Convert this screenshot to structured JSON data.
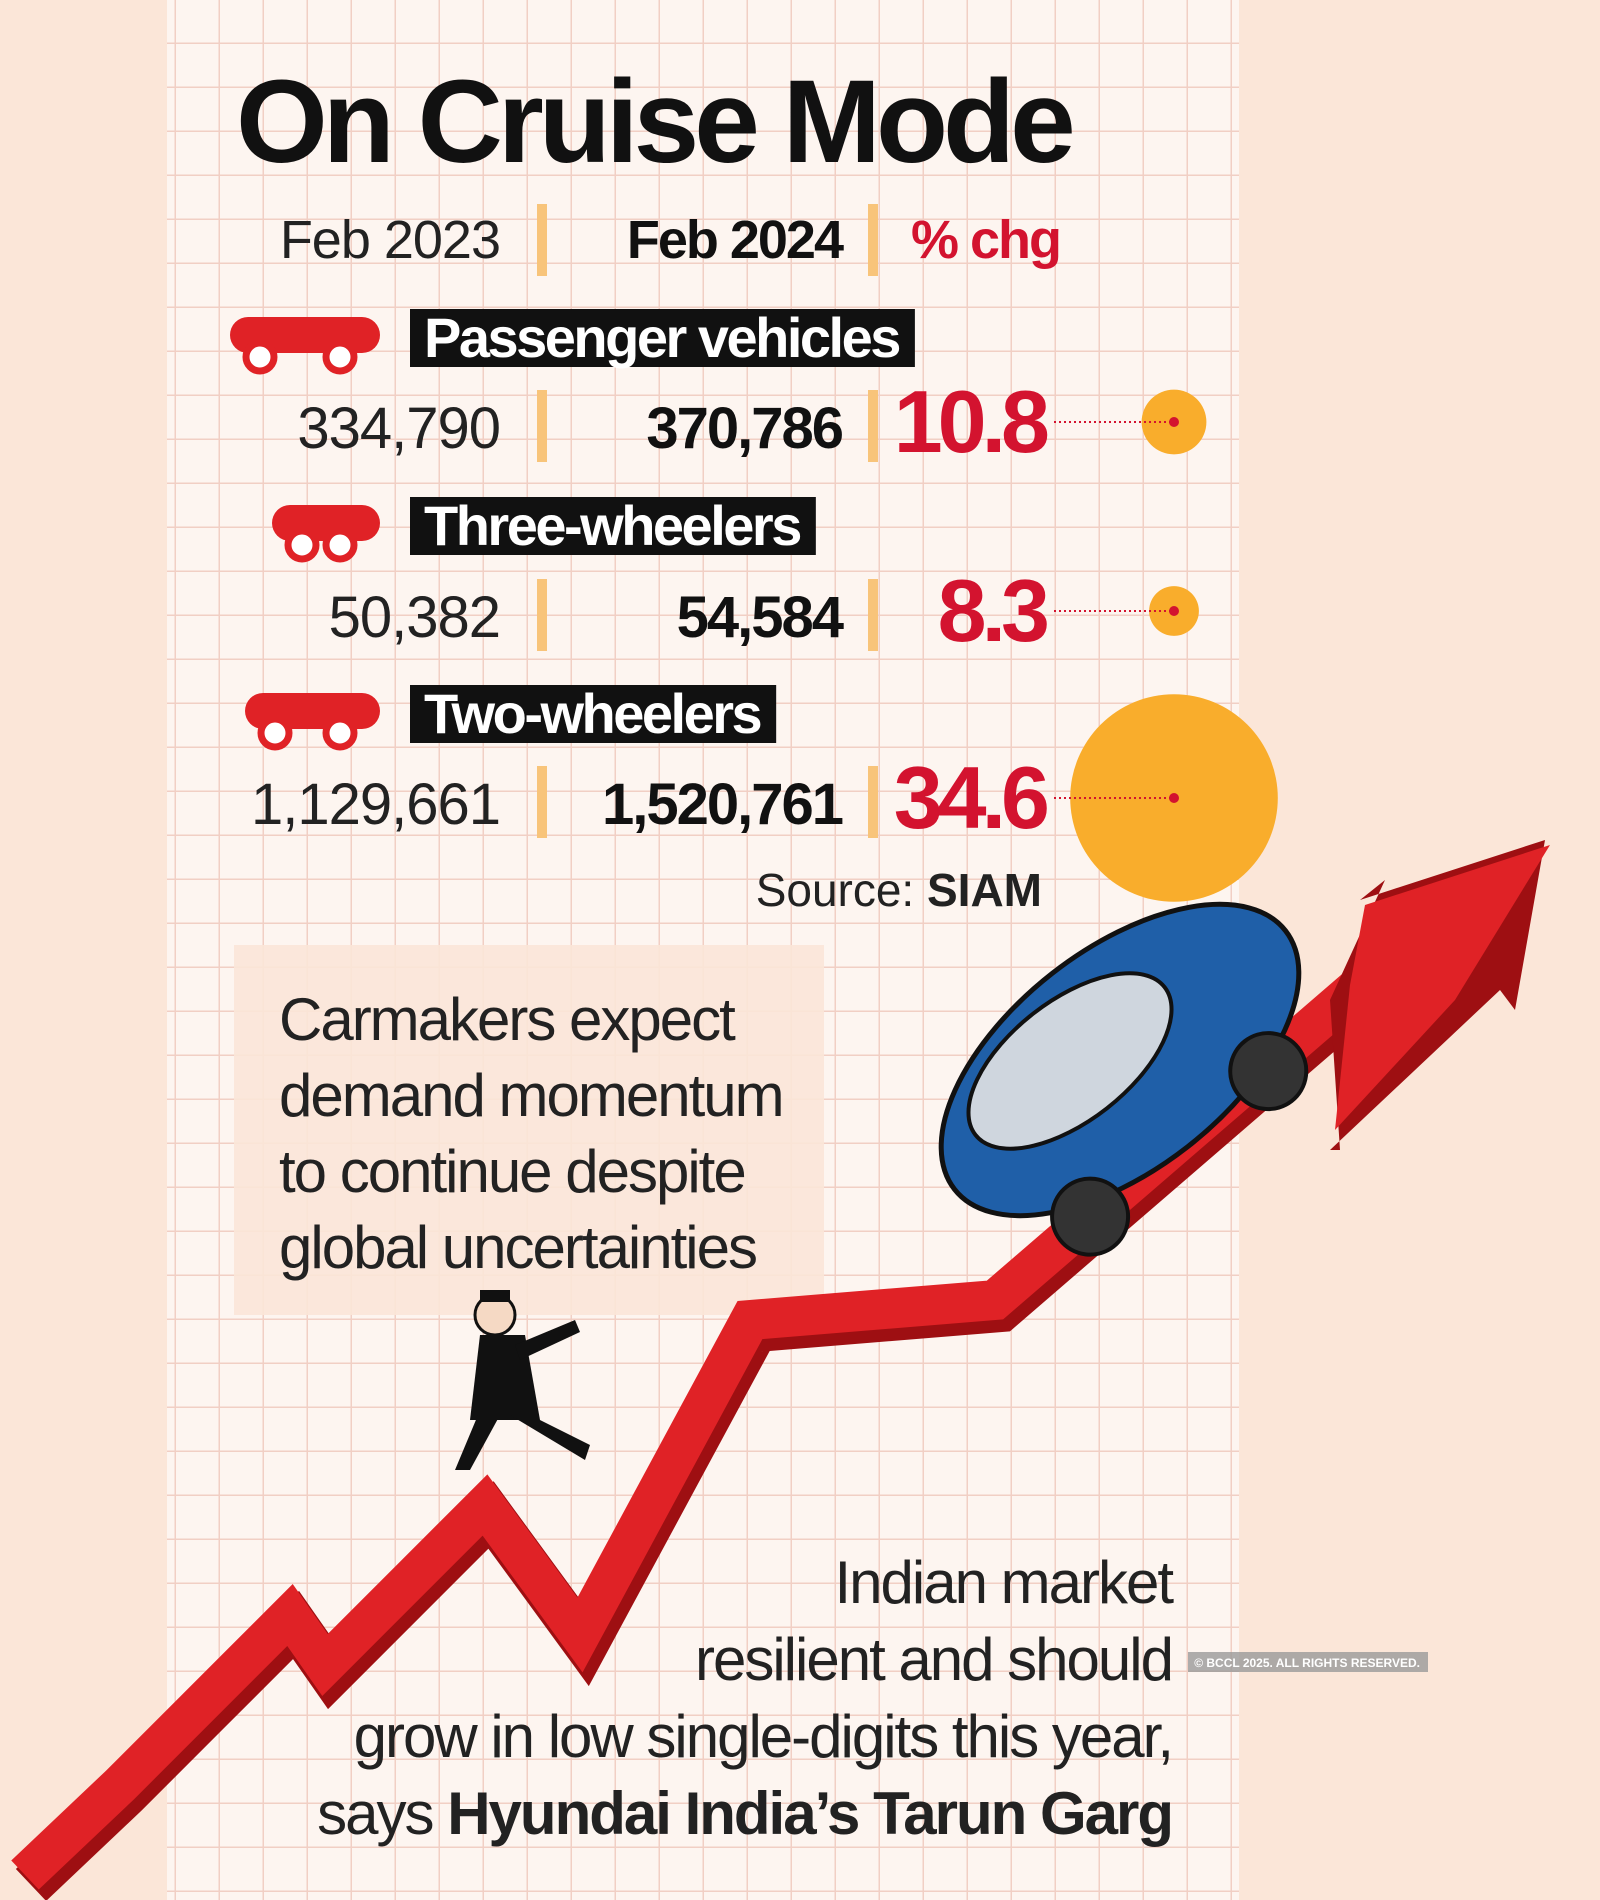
{
  "title": "On Cruise Mode",
  "columns": [
    "Feb 2023",
    "Feb 2024",
    "% chg"
  ],
  "rows": [
    {
      "label": "Passenger vehicles",
      "feb_2023": "334,790",
      "feb_2024": "370,786",
      "pct_change": 10.8
    },
    {
      "label": "Three-wheelers",
      "feb_2023": "50,382",
      "feb_2024": "54,584",
      "pct_change": 8.3
    },
    {
      "label": "Two-wheelers",
      "feb_2023": "1,129,661",
      "feb_2024": "1,520,761",
      "pct_change": 34.6
    }
  ],
  "source": {
    "label": "Source:",
    "name": "SIAM"
  },
  "callout": [
    "Carmakers expect",
    "demand momentum",
    "to continue despite",
    "global uncertainties"
  ],
  "quote": {
    "lines": [
      "Indian market",
      "resilient and should",
      "grow in low single-digits this year,",
      "says"
    ],
    "attribution": "Hyundai India’s Tarun Garg"
  },
  "copyright": "© BCCL 2025. ALL RIGHTS RESERVED."
}
